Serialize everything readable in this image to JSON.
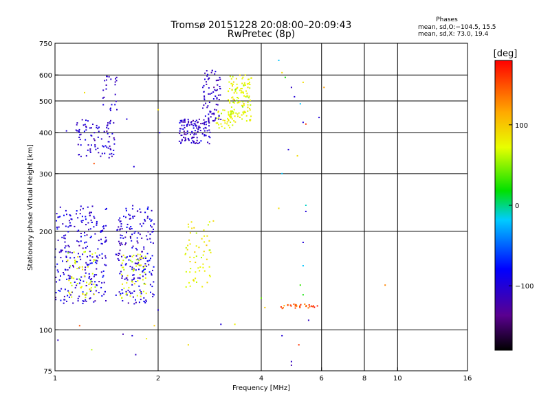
{
  "chart_data": {
    "type": "scatter",
    "title": "Tromsø 20151228 20:08:00–20:09:43",
    "subtitle": "RwPretec (8p)",
    "xlabel": "Frequency [MHz]",
    "ylabel": "Stationary phase Virtual Height [km]",
    "x_scale": "log",
    "y_scale": "log",
    "xlim": [
      1,
      16
    ],
    "ylim": [
      75,
      750
    ],
    "x_ticks": [
      1,
      2,
      4,
      6,
      8,
      10,
      16
    ],
    "x_tick_labels": [
      "1",
      "2",
      "4",
      "6",
      "8",
      "10",
      "16"
    ],
    "x_grid": [
      2,
      4,
      6,
      8,
      10
    ],
    "y_ticks": [
      75,
      100,
      200,
      300,
      400,
      500,
      600,
      750
    ],
    "y_tick_labels": [
      "75",
      "100",
      "200",
      "300",
      "400",
      "500",
      "600",
      "750"
    ],
    "y_grid": [
      100,
      200,
      300,
      400,
      500,
      600
    ],
    "grid": true,
    "stats_title": "Phases",
    "stats_lines": [
      "mean, sd,O:−104.5, 15.5",
      "mean, sd,X:  73.0, 19.4"
    ],
    "colorbar": {
      "label": "[deg]",
      "range": [
        -180,
        180
      ],
      "ticks": [
        100,
        0,
        -100
      ],
      "tick_labels": [
        "100",
        "0",
        "−100"
      ]
    },
    "clusters": [
      {
        "xr": [
          1.0,
          1.42
        ],
        "yr": [
          120,
          240
        ],
        "n": 260,
        "phase": -100,
        "sd": 14
      },
      {
        "xr": [
          1.08,
          1.32
        ],
        "yr": [
          125,
          175
        ],
        "n": 55,
        "phase": 72,
        "sd": 10
      },
      {
        "xr": [
          1.5,
          1.95
        ],
        "yr": [
          120,
          240
        ],
        "n": 210,
        "phase": -102,
        "sd": 14
      },
      {
        "xr": [
          1.55,
          1.85
        ],
        "yr": [
          125,
          170
        ],
        "n": 55,
        "phase": 72,
        "sd": 10
      },
      {
        "xr": [
          1.15,
          1.5
        ],
        "yr": [
          330,
          440
        ],
        "n": 90,
        "phase": -105,
        "sd": 12
      },
      {
        "xr": [
          1.38,
          1.52
        ],
        "yr": [
          450,
          600
        ],
        "n": 25,
        "phase": -110,
        "sd": 10
      },
      {
        "xr": [
          2.3,
          2.85
        ],
        "yr": [
          370,
          440
        ],
        "n": 120,
        "phase": -108,
        "sd": 12
      },
      {
        "xr": [
          2.7,
          3.05
        ],
        "yr": [
          430,
          620
        ],
        "n": 80,
        "phase": -112,
        "sd": 10
      },
      {
        "xr": [
          2.95,
          3.3
        ],
        "yr": [
          410,
          470
        ],
        "n": 30,
        "phase": 78,
        "sd": 8
      },
      {
        "xr": [
          3.2,
          3.75
        ],
        "yr": [
          430,
          600
        ],
        "n": 130,
        "phase": 75,
        "sd": 10
      },
      {
        "xr": [
          2.4,
          2.85
        ],
        "yr": [
          135,
          215
        ],
        "n": 60,
        "phase": 78,
        "sd": 10
      },
      {
        "xr": [
          4.5,
          5.9
        ],
        "yr": [
          116,
          120
        ],
        "n": 30,
        "phase": 150,
        "sd": 12
      }
    ],
    "sparse_points": [
      {
        "x": 1.02,
        "y": 93,
        "phase": -110
      },
      {
        "x": 1.18,
        "y": 103,
        "phase": 150
      },
      {
        "x": 1.28,
        "y": 87,
        "phase": 60
      },
      {
        "x": 1.58,
        "y": 97,
        "phase": -120
      },
      {
        "x": 1.68,
        "y": 96,
        "phase": -100
      },
      {
        "x": 1.85,
        "y": 94,
        "phase": 80
      },
      {
        "x": 1.72,
        "y": 84,
        "phase": -110
      },
      {
        "x": 1.95,
        "y": 103,
        "phase": 100
      },
      {
        "x": 2.45,
        "y": 90,
        "phase": 90
      },
      {
        "x": 3.05,
        "y": 104,
        "phase": -100
      },
      {
        "x": 3.35,
        "y": 104,
        "phase": 80
      },
      {
        "x": 4.1,
        "y": 117,
        "phase": 100
      },
      {
        "x": 4.6,
        "y": 96,
        "phase": -100
      },
      {
        "x": 4.9,
        "y": 80,
        "phase": -110
      },
      {
        "x": 4.9,
        "y": 78,
        "phase": -120
      },
      {
        "x": 5.15,
        "y": 90,
        "phase": 160
      },
      {
        "x": 5.5,
        "y": 107,
        "phase": -110
      },
      {
        "x": 5.3,
        "y": 128,
        "phase": 20
      },
      {
        "x": 5.2,
        "y": 137,
        "phase": 30
      },
      {
        "x": 5.3,
        "y": 157,
        "phase": -20
      },
      {
        "x": 5.3,
        "y": 185,
        "phase": -100
      },
      {
        "x": 5.4,
        "y": 240,
        "phase": -10
      },
      {
        "x": 5.4,
        "y": 230,
        "phase": -100
      },
      {
        "x": 4.5,
        "y": 235,
        "phase": 90
      },
      {
        "x": 4.6,
        "y": 300,
        "phase": -20
      },
      {
        "x": 4.8,
        "y": 355,
        "phase": -100
      },
      {
        "x": 5.1,
        "y": 340,
        "phase": 90
      },
      {
        "x": 5.3,
        "y": 430,
        "phase": -100
      },
      {
        "x": 5.4,
        "y": 425,
        "phase": 160
      },
      {
        "x": 5.9,
        "y": 445,
        "phase": -100
      },
      {
        "x": 5.2,
        "y": 490,
        "phase": -20
      },
      {
        "x": 5.0,
        "y": 515,
        "phase": -100
      },
      {
        "x": 4.7,
        "y": 590,
        "phase": 20
      },
      {
        "x": 4.6,
        "y": 610,
        "phase": 90
      },
      {
        "x": 4.5,
        "y": 665,
        "phase": -20
      },
      {
        "x": 4.9,
        "y": 550,
        "phase": -110
      },
      {
        "x": 5.3,
        "y": 570,
        "phase": 90
      },
      {
        "x": 6.1,
        "y": 550,
        "phase": 120
      },
      {
        "x": 9.2,
        "y": 137,
        "phase": 130
      },
      {
        "x": 4.0,
        "y": 125,
        "phase": 40
      },
      {
        "x": 2.45,
        "y": 210,
        "phase": 90
      },
      {
        "x": 2.9,
        "y": 215,
        "phase": 90
      },
      {
        "x": 1.22,
        "y": 530,
        "phase": 90
      },
      {
        "x": 1.08,
        "y": 405,
        "phase": -100
      },
      {
        "x": 1.3,
        "y": 322,
        "phase": 150
      },
      {
        "x": 2.0,
        "y": 470,
        "phase": 90
      },
      {
        "x": 2.02,
        "y": 400,
        "phase": -100
      },
      {
        "x": 2.0,
        "y": 115,
        "phase": -100
      },
      {
        "x": 1.62,
        "y": 440,
        "phase": -100
      },
      {
        "x": 1.7,
        "y": 315,
        "phase": -100
      }
    ]
  }
}
